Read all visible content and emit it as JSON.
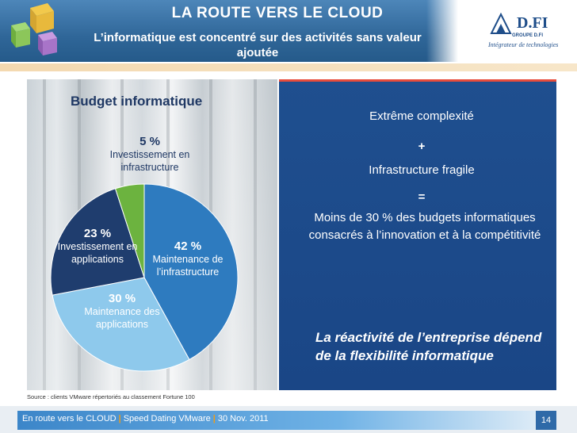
{
  "header": {
    "title": "LA ROUTE VERS LE CLOUD",
    "subtitle": "L’informatique est concentré sur des activités sans valeur ajoutée"
  },
  "logo": {
    "name": "D.FI",
    "group": "GROUPE D.FI",
    "tagline": "Intégrateur de technologies"
  },
  "chart_data": {
    "type": "pie",
    "title": "Budget informatique",
    "slices": [
      {
        "pct_label": "42 %",
        "desc": "Maintenance de l’infrastructure",
        "value": 42,
        "color": "#2e7bbf"
      },
      {
        "pct_label": "30 %",
        "desc": "Maintenance des applications",
        "value": 30,
        "color": "#8ec9ec"
      },
      {
        "pct_label": "23 %",
        "desc": "Investissement en applications",
        "value": 23,
        "color": "#1f3d6e"
      },
      {
        "pct_label": "5 %",
        "desc": "Investissement en infrastructure",
        "value": 5,
        "color": "#6cb33f"
      }
    ]
  },
  "right_panel": {
    "line1": "Extrême complexité",
    "plus": "+",
    "line2": "Infrastructure fragile",
    "equals": "=",
    "line3": "Moins de 30 % des budgets informatiques consacrés à l’innovation et à la compétitivité",
    "emphasis": "La réactivité de l’entreprise dépend de la flexibilité informatique"
  },
  "source": "Source : clients VMware répertoriés au classement Fortune 100",
  "footer": {
    "part1": "En  route vers le CLOUD",
    "sep": "|",
    "part2": "Speed Dating VMware",
    "part3": "30 Nov. 2011",
    "page": "14"
  },
  "colors": {
    "header_blue": "#2f6698",
    "panel_blue": "#1f4f8f",
    "title_navy": "#1f3864"
  }
}
